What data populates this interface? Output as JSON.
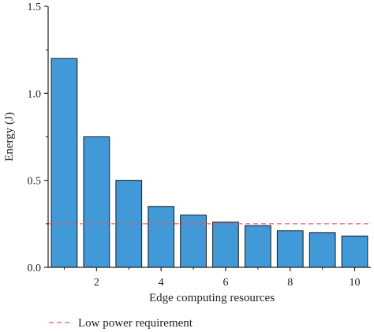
{
  "chart_data": {
    "type": "bar",
    "x": [
      1,
      2,
      3,
      4,
      5,
      6,
      7,
      8,
      9,
      10
    ],
    "values": [
      1.2,
      0.75,
      0.5,
      0.35,
      0.3,
      0.26,
      0.24,
      0.21,
      0.2,
      0.18
    ],
    "xlabel": "Edge computing resources",
    "ylabel": "Energy (J)",
    "xlim": [
      0.5,
      10.5
    ],
    "ylim": [
      0,
      1.5
    ],
    "xticks": [
      2,
      4,
      6,
      8,
      10
    ],
    "xtick_labels": [
      "2",
      "4",
      "6",
      "8",
      "10"
    ],
    "yticks": [
      0.0,
      0.5,
      1.0,
      1.5
    ],
    "ytick_labels": [
      "0.0",
      "0.5",
      "1.0",
      "1.5"
    ],
    "reference_line": {
      "y": 0.25,
      "label": "Low power requirement",
      "style": "dashed"
    },
    "colors": {
      "bar_fill": "#4299d8",
      "bar_stroke": "#1a1a1a",
      "reference_line": "#e05a5a",
      "axis": "#222222"
    },
    "grid": false,
    "legend_position": "bottom-left"
  }
}
